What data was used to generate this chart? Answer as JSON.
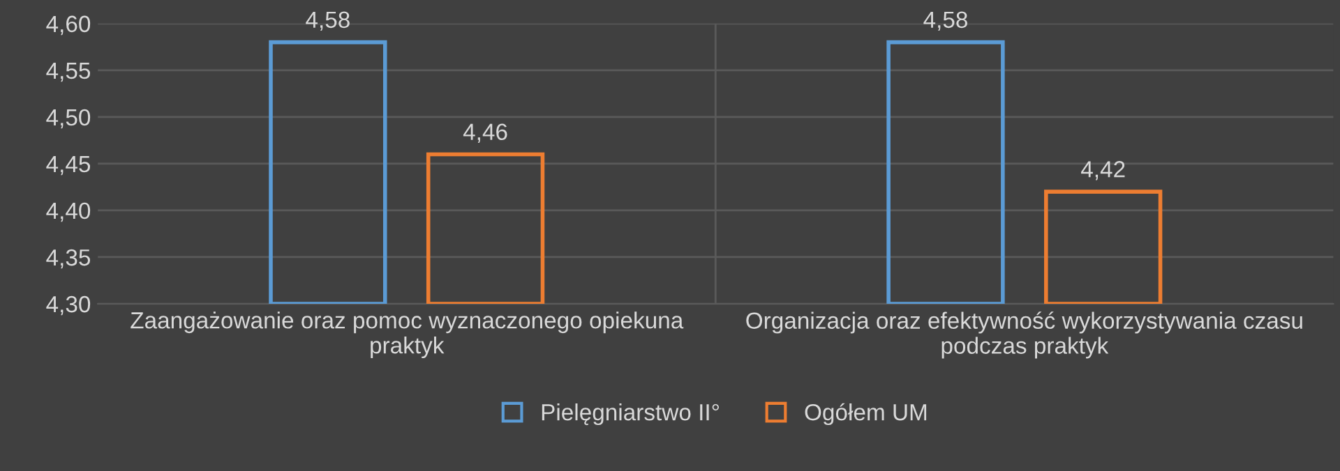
{
  "chart_data": {
    "type": "bar",
    "categories": [
      "Zaangażowanie oraz pomoc wyznaczonego opiekuna\npraktyk",
      "Organizacja oraz efektywność wykorzystywania czasu\npodczas praktyk"
    ],
    "series": [
      {
        "name": "Pielęgniarstwo II°",
        "color": "#5b9bd5",
        "values": [
          4.58,
          4.58
        ],
        "value_labels": [
          "4,58",
          "4,58"
        ]
      },
      {
        "name": "Ogółem UM",
        "color": "#ed7d31",
        "values": [
          4.46,
          4.42
        ],
        "value_labels": [
          "4,46",
          "4,42"
        ]
      }
    ],
    "ylim": [
      4.3,
      4.6
    ],
    "yticks": [
      {
        "value": 4.3,
        "label": "4,30"
      },
      {
        "value": 4.35,
        "label": "4,35"
      },
      {
        "value": 4.4,
        "label": "4,40"
      },
      {
        "value": 4.45,
        "label": "4,45"
      },
      {
        "value": 4.5,
        "label": "4,50"
      },
      {
        "value": 4.55,
        "label": "4,55"
      },
      {
        "value": 4.6,
        "label": "4,60"
      }
    ],
    "grid": true,
    "legend": "bottom"
  }
}
